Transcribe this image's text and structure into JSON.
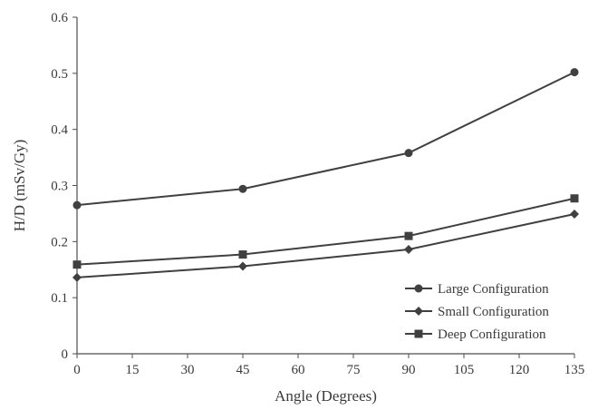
{
  "chart_data": {
    "type": "line",
    "xlabel": "Angle (Degrees)",
    "ylabel": "H/D (mSv/Gy)",
    "xlim": [
      0,
      135
    ],
    "ylim": [
      0,
      0.6
    ],
    "x_ticks": [
      "0",
      "15",
      "30",
      "45",
      "60",
      "75",
      "90",
      "105",
      "120",
      "135"
    ],
    "y_ticks": [
      "0",
      "0.1",
      "0.2",
      "0.3",
      "0.4",
      "0.5",
      "0.6"
    ],
    "grid": false,
    "legend_position": "bottom-right",
    "series": [
      {
        "name": "Large Configuration",
        "marker": "circle",
        "color": "#404040",
        "x": [
          0,
          45,
          90,
          135
        ],
        "y": [
          0.265,
          0.294,
          0.358,
          0.502
        ]
      },
      {
        "name": "Small Configuration",
        "marker": "diamond",
        "color": "#404040",
        "x": [
          0,
          45,
          90,
          135
        ],
        "y": [
          0.136,
          0.156,
          0.186,
          0.249
        ]
      },
      {
        "name": "Deep Configuration",
        "marker": "square",
        "color": "#404040",
        "x": [
          0,
          45,
          90,
          135
        ],
        "y": [
          0.159,
          0.177,
          0.21,
          0.277
        ]
      }
    ]
  }
}
